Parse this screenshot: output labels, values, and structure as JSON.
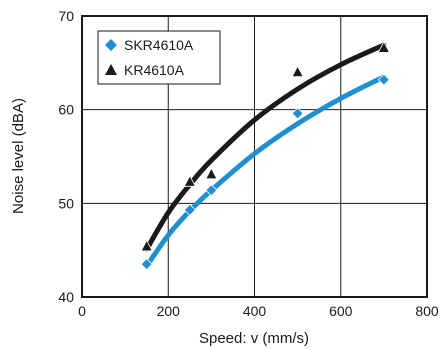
{
  "chart_data": {
    "type": "scatter",
    "xlabel": "Speed: v (mm/s)",
    "ylabel": "Noise level (dBA)",
    "xlim": [
      0,
      800
    ],
    "ylim": [
      40,
      70
    ],
    "xticks": [
      0,
      200,
      400,
      600,
      800
    ],
    "yticks": [
      40,
      50,
      60,
      70
    ],
    "grid": true,
    "legend_position": "top-left",
    "series": [
      {
        "name": "SKR4610A",
        "marker": "diamond",
        "color": "#1f8fd0",
        "points": [
          [
            150,
            43.5
          ],
          [
            250,
            49.3
          ],
          [
            300,
            51.4
          ],
          [
            500,
            59.6
          ],
          [
            700,
            63.2
          ]
        ],
        "trend": [
          [
            150,
            43.3
          ],
          [
            200,
            46.6
          ],
          [
            250,
            49.2
          ],
          [
            300,
            51.4
          ],
          [
            400,
            55.3
          ],
          [
            500,
            58.5
          ],
          [
            600,
            61.2
          ],
          [
            700,
            63.5
          ]
        ]
      },
      {
        "name": "KR4610A",
        "marker": "triangle",
        "color": "#1a1a1a",
        "points": [
          [
            150,
            45.4
          ],
          [
            250,
            52.3
          ],
          [
            300,
            53.1
          ],
          [
            500,
            64.0
          ],
          [
            700,
            66.6
          ]
        ],
        "trend": [
          [
            150,
            45.1
          ],
          [
            200,
            49.0
          ],
          [
            250,
            52.0
          ],
          [
            300,
            54.6
          ],
          [
            400,
            58.9
          ],
          [
            500,
            62.2
          ],
          [
            600,
            64.8
          ],
          [
            700,
            66.9
          ]
        ]
      }
    ]
  }
}
